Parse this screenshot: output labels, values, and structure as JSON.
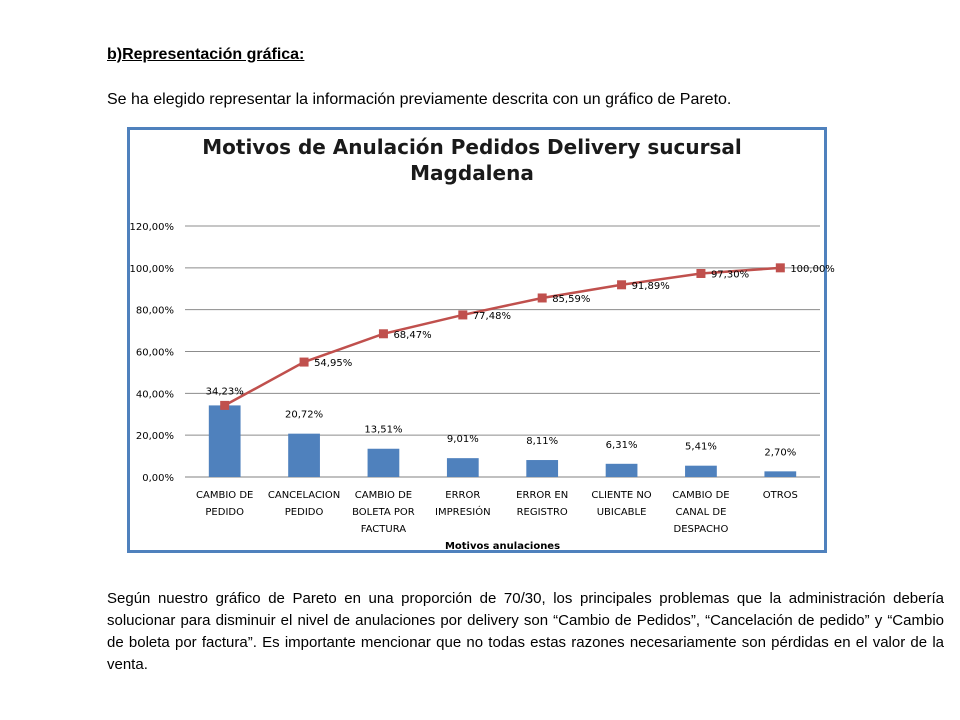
{
  "document": {
    "heading": "b)Representación gráfica:",
    "intro": "Se ha elegido representar la información previamente descrita con un gráfico de Pareto.",
    "footer": "Según nuestro gráfico de Pareto en una proporción de 70/30, los principales problemas que la administración debería solucionar para disminuir el nivel de anulaciones por delivery son “Cambio de Pedidos”, “Cancelación de pedido” y “Cambio de boleta por factura”. Es importante mencionar que no todas estas razones necesariamente son pérdidas en el valor de la venta."
  },
  "colors": {
    "bar": "#4f81bd",
    "line": "#c0504d",
    "border": "#4f81bd",
    "grid": "#8c8c8c"
  },
  "chart_data": {
    "type": "bar",
    "title_lines": [
      "Motivos de Anulación Pedidos Delivery sucursal",
      "Magdalena"
    ],
    "xlabel": "Motivos anulaciones",
    "ylabel": "",
    "categories": [
      [
        "CAMBIO DE",
        "PEDIDO"
      ],
      [
        "CANCELACION",
        "PEDIDO"
      ],
      [
        "CAMBIO DE",
        "BOLETA POR",
        "FACTURA"
      ],
      [
        "ERROR",
        "IMPRESIÓN"
      ],
      [
        "ERROR EN",
        "REGISTRO"
      ],
      [
        "CLIENTE NO",
        "UBICABLE"
      ],
      [
        "CAMBIO DE",
        "CANAL DE",
        "DESPACHO"
      ],
      [
        "OTROS"
      ]
    ],
    "series": [
      {
        "kind": "bar",
        "values": [
          34.23,
          20.72,
          13.51,
          9.01,
          8.11,
          6.31,
          5.41,
          2.7
        ],
        "labels": [
          "34,23%",
          "20,72%",
          "13,51%",
          "9,01%",
          "8,11%",
          "6,31%",
          "5,41%",
          "2,70%"
        ]
      },
      {
        "kind": "line",
        "values": [
          34.23,
          54.95,
          68.47,
          77.48,
          85.59,
          91.89,
          97.3,
          100.0
        ],
        "labels": [
          "",
          "54,95%",
          "68,47%",
          "77,48%",
          "85,59%",
          "91,89%",
          "97,30%",
          "100,00%"
        ]
      }
    ],
    "ylim": [
      0,
      120
    ],
    "yticks": [
      0,
      20,
      40,
      60,
      80,
      100,
      120
    ],
    "ytick_labels": [
      "0,00%",
      "20,00%",
      "40,00%",
      "60,00%",
      "80,00%",
      "100,00%",
      "120,00%"
    ],
    "grid": true,
    "legend": "none"
  }
}
